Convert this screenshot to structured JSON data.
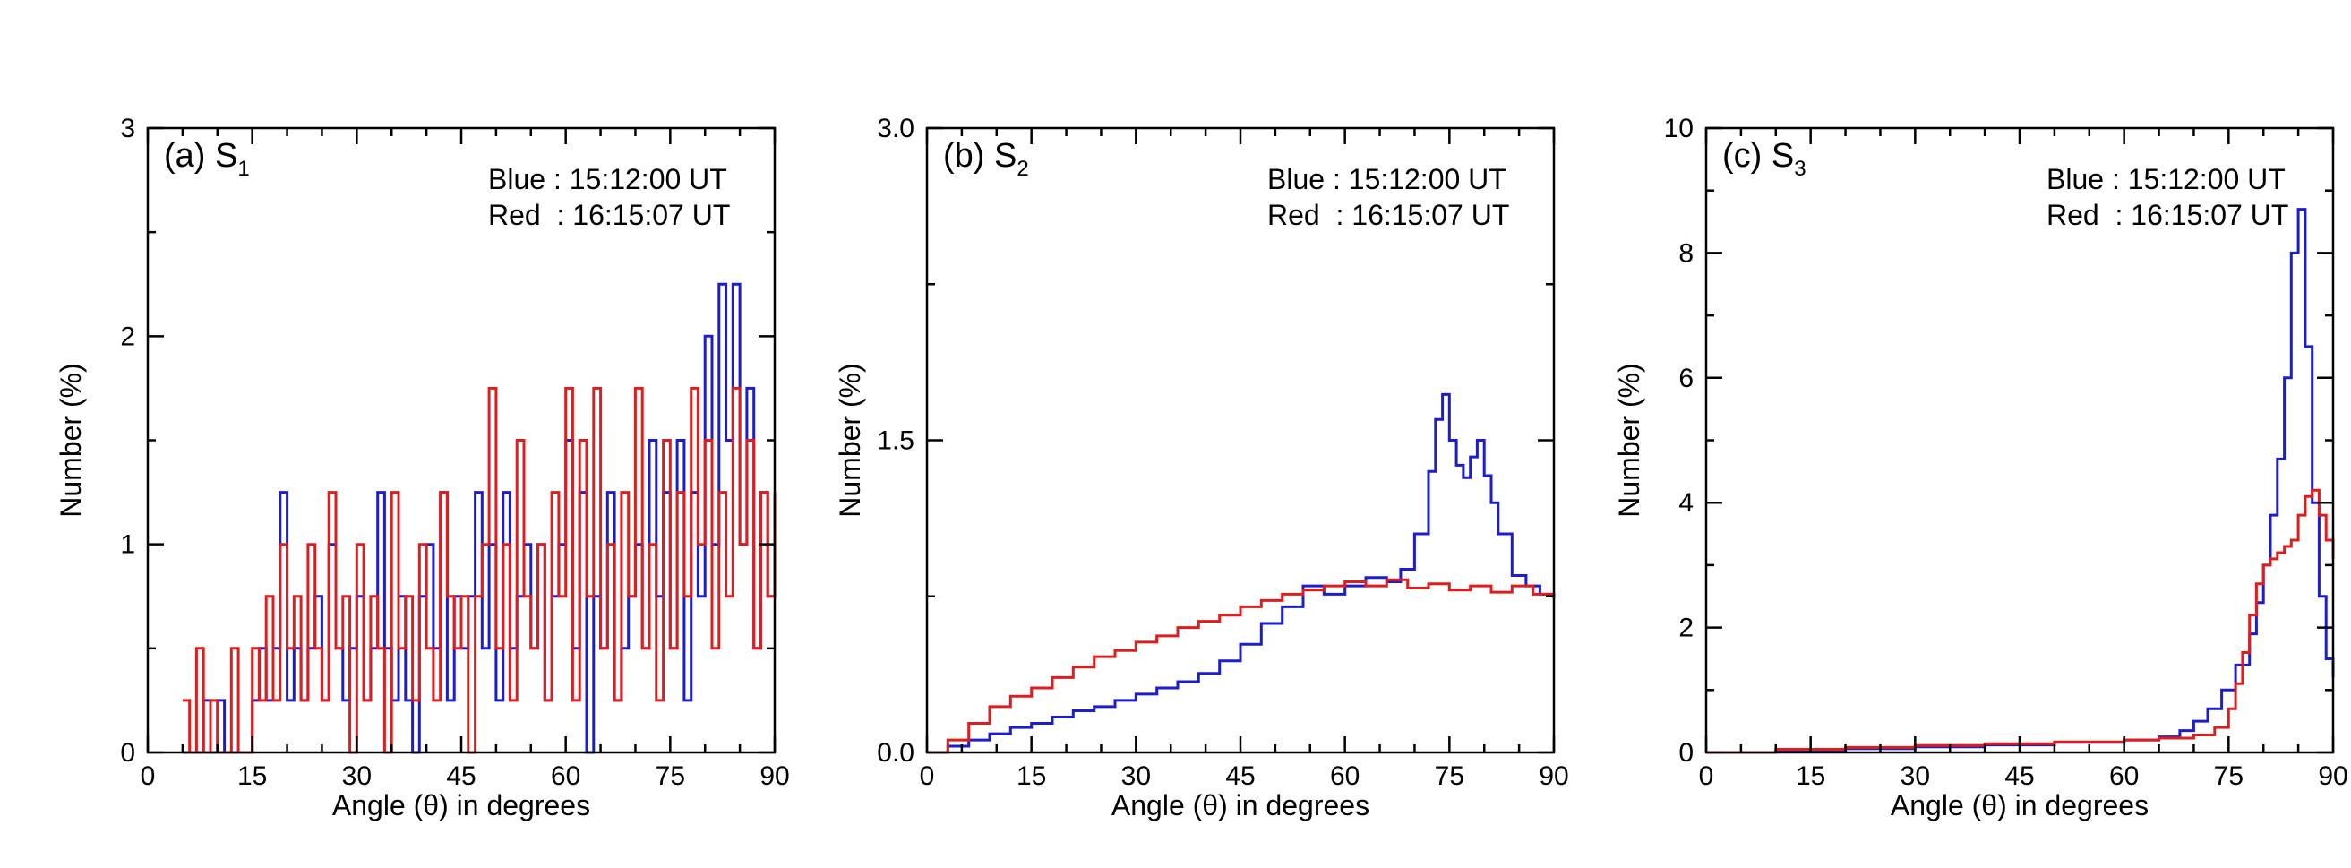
{
  "colors": {
    "blue": "#1d1dd0",
    "red": "#de1e1e",
    "axis": "#000000"
  },
  "chart_data": [
    {
      "type": "line",
      "panel_label": "(a)",
      "title_base": "S",
      "title_sub": "1",
      "xlabel": "Angle (θ) in degrees",
      "ylabel": "Number (%)",
      "xlim": [
        0,
        90
      ],
      "ylim": [
        0,
        3
      ],
      "xticks": [
        "0",
        "15",
        "30",
        "45",
        "60",
        "75",
        "90"
      ],
      "yticks": [
        "0",
        "1",
        "2",
        "3"
      ],
      "ytick_values": [
        0,
        1,
        2,
        3
      ],
      "legend": [
        "Blue : 15:12:00 UT",
        "Red  : 16:15:07 UT"
      ],
      "series": [
        {
          "name": "Blue : 15:12:00 UT",
          "color": "blue",
          "x": [
            5,
            6,
            7,
            8,
            9,
            10,
            11,
            12,
            13,
            14,
            15,
            16,
            17,
            18,
            19,
            20,
            21,
            22,
            23,
            24,
            25,
            26,
            27,
            28,
            29,
            30,
            31,
            32,
            33,
            34,
            35,
            36,
            37,
            38,
            39,
            40,
            41,
            42,
            43,
            44,
            45,
            46,
            47,
            48,
            49,
            50,
            51,
            52,
            53,
            54,
            55,
            56,
            57,
            58,
            59,
            60,
            61,
            62,
            63,
            64,
            65,
            66,
            67,
            68,
            69,
            70,
            71,
            72,
            73,
            74,
            75,
            76,
            77,
            78,
            79,
            80,
            81,
            82,
            83,
            84,
            85,
            86,
            87,
            88,
            89,
            90
          ],
          "values": [
            0,
            0,
            0,
            0.25,
            0,
            0.25,
            0,
            0,
            0,
            0,
            0.25,
            0.5,
            0.25,
            0.5,
            1.25,
            0.25,
            0.5,
            0.25,
            0.5,
            0.75,
            0.25,
            1,
            0.5,
            0.25,
            0.5,
            0.75,
            0.25,
            0.5,
            1.25,
            0.5,
            0.25,
            0.75,
            0.25,
            0,
            0.75,
            1,
            0.5,
            1.25,
            0.25,
            0.75,
            0.5,
            0.75,
            1.25,
            0.5,
            1,
            0.25,
            1.25,
            0.5,
            0.75,
            1,
            0.5,
            1,
            0.25,
            0.75,
            1,
            1.5,
            0.5,
            1.25,
            0,
            0.75,
            0.5,
            1.25,
            0.25,
            0.5,
            0.75,
            1,
            0.5,
            1.5,
            0.75,
            1.25,
            0.5,
            1.5,
            0.25,
            1.25,
            0.75,
            2,
            1,
            2.25,
            1.5,
            2.25,
            1,
            1.75,
            0.5,
            1.25,
            0.75,
            1.25
          ]
        },
        {
          "name": "Red  : 16:15:07 UT",
          "color": "red",
          "x": [
            5,
            6,
            7,
            8,
            9,
            10,
            11,
            12,
            13,
            14,
            15,
            16,
            17,
            18,
            19,
            20,
            21,
            22,
            23,
            24,
            25,
            26,
            27,
            28,
            29,
            30,
            31,
            32,
            33,
            34,
            35,
            36,
            37,
            38,
            39,
            40,
            41,
            42,
            43,
            44,
            45,
            46,
            47,
            48,
            49,
            50,
            51,
            52,
            53,
            54,
            55,
            56,
            57,
            58,
            59,
            60,
            61,
            62,
            63,
            64,
            65,
            66,
            67,
            68,
            69,
            70,
            71,
            72,
            73,
            74,
            75,
            76,
            77,
            78,
            79,
            80,
            81,
            82,
            83,
            84,
            85,
            86,
            87,
            88,
            89,
            90
          ],
          "values": [
            0.25,
            0,
            0.5,
            0,
            0.25,
            0,
            0,
            0.5,
            0,
            0,
            0.5,
            0.25,
            0.75,
            0.25,
            1,
            0.5,
            0.75,
            0.25,
            1,
            0.5,
            0.25,
            1.25,
            0.5,
            0.75,
            0,
            1,
            0.25,
            0.75,
            0.5,
            0,
            1.25,
            0.5,
            0.75,
            0.25,
            1,
            0.5,
            0.25,
            1.25,
            0.75,
            0.5,
            0.75,
            0,
            0.75,
            1,
            1.75,
            0.5,
            1,
            0.25,
            1.5,
            0.75,
            0.5,
            1,
            0.25,
            1.25,
            0.75,
            1.75,
            0.25,
            1.5,
            0.75,
            1.75,
            0.5,
            1,
            0.25,
            1.25,
            0.75,
            1.75,
            0.5,
            1,
            0.25,
            1.5,
            0.5,
            1.25,
            0.75,
            1.75,
            1,
            1.5,
            0.5,
            1.25,
            0.75,
            1.75,
            1,
            1.5,
            0.5,
            1.25,
            0.75,
            1.25
          ]
        }
      ]
    },
    {
      "type": "line",
      "panel_label": "(b)",
      "title_base": "S",
      "title_sub": "2",
      "xlabel": "Angle (θ) in degrees",
      "ylabel": "Number (%)",
      "xlim": [
        0,
        90
      ],
      "ylim": [
        0,
        3
      ],
      "xticks": [
        "0",
        "15",
        "30",
        "45",
        "60",
        "75",
        "90"
      ],
      "yticks": [
        "0.0",
        "1.5",
        "3.0"
      ],
      "ytick_values": [
        0,
        1.5,
        3
      ],
      "legend": [
        "Blue : 15:12:00 UT",
        "Red  : 16:15:07 UT"
      ],
      "series": [
        {
          "name": "Blue : 15:12:00 UT",
          "color": "blue",
          "x": [
            0,
            3,
            6,
            9,
            12,
            15,
            18,
            21,
            24,
            27,
            30,
            33,
            36,
            39,
            42,
            45,
            48,
            51,
            54,
            57,
            60,
            63,
            66,
            68,
            70,
            72,
            73,
            74,
            75,
            76,
            77,
            78,
            79,
            80,
            81,
            82,
            84,
            86,
            88,
            90
          ],
          "values": [
            0,
            0.03,
            0.06,
            0.09,
            0.12,
            0.14,
            0.17,
            0.2,
            0.22,
            0.25,
            0.28,
            0.31,
            0.34,
            0.38,
            0.44,
            0.52,
            0.62,
            0.7,
            0.8,
            0.76,
            0.8,
            0.84,
            0.82,
            0.88,
            1.05,
            1.35,
            1.6,
            1.72,
            1.5,
            1.38,
            1.32,
            1.42,
            1.5,
            1.33,
            1.2,
            1.05,
            0.85,
            0.8,
            0.76,
            0.74
          ]
        },
        {
          "name": "Red  : 16:15:07 UT",
          "color": "red",
          "x": [
            0,
            3,
            6,
            9,
            12,
            15,
            18,
            21,
            24,
            27,
            30,
            33,
            36,
            39,
            42,
            45,
            48,
            51,
            54,
            57,
            60,
            63,
            66,
            69,
            72,
            75,
            78,
            81,
            84,
            87,
            90
          ],
          "values": [
            0,
            0.06,
            0.14,
            0.22,
            0.27,
            0.31,
            0.36,
            0.41,
            0.46,
            0.49,
            0.53,
            0.56,
            0.6,
            0.63,
            0.66,
            0.7,
            0.73,
            0.76,
            0.78,
            0.8,
            0.82,
            0.8,
            0.83,
            0.79,
            0.81,
            0.78,
            0.8,
            0.77,
            0.8,
            0.76,
            0.74
          ]
        }
      ]
    },
    {
      "type": "line",
      "panel_label": "(c)",
      "title_base": "S",
      "title_sub": "3",
      "xlabel": "Angle (θ) in degrees",
      "ylabel": "Number (%)",
      "xlim": [
        0,
        90
      ],
      "ylim": [
        0,
        10
      ],
      "xticks": [
        "0",
        "15",
        "30",
        "45",
        "60",
        "75",
        "90"
      ],
      "yticks": [
        "0",
        "2",
        "4",
        "6",
        "8",
        "10"
      ],
      "ytick_values": [
        0,
        2,
        4,
        6,
        8,
        10
      ],
      "legend": [
        "Blue : 15:12:00 UT",
        "Red  : 16:15:07 UT"
      ],
      "series": [
        {
          "name": "Blue : 15:12:00 UT",
          "color": "blue",
          "x": [
            0,
            10,
            20,
            30,
            40,
            50,
            60,
            65,
            68,
            70,
            72,
            74,
            76,
            78,
            79,
            80,
            81,
            82,
            83,
            84,
            85,
            86,
            87,
            88,
            89,
            90
          ],
          "values": [
            0,
            0.03,
            0.06,
            0.09,
            0.12,
            0.16,
            0.2,
            0.25,
            0.35,
            0.5,
            0.7,
            1.0,
            1.4,
            1.9,
            2.4,
            3.0,
            3.8,
            4.7,
            6.0,
            8.0,
            8.7,
            6.5,
            4.0,
            2.5,
            1.5,
            1.2
          ]
        },
        {
          "name": "Red  : 16:15:07 UT",
          "color": "red",
          "x": [
            0,
            10,
            20,
            30,
            40,
            50,
            60,
            65,
            70,
            73,
            75,
            76,
            77,
            78,
            79,
            80,
            81,
            82,
            83,
            84,
            85,
            86,
            87,
            88,
            89,
            90
          ],
          "values": [
            0,
            0.05,
            0.08,
            0.11,
            0.14,
            0.17,
            0.2,
            0.23,
            0.28,
            0.4,
            0.7,
            1.1,
            1.6,
            2.2,
            2.7,
            3.0,
            3.1,
            3.2,
            3.3,
            3.4,
            3.8,
            4.1,
            4.2,
            3.8,
            3.4,
            3.1
          ]
        }
      ]
    }
  ]
}
